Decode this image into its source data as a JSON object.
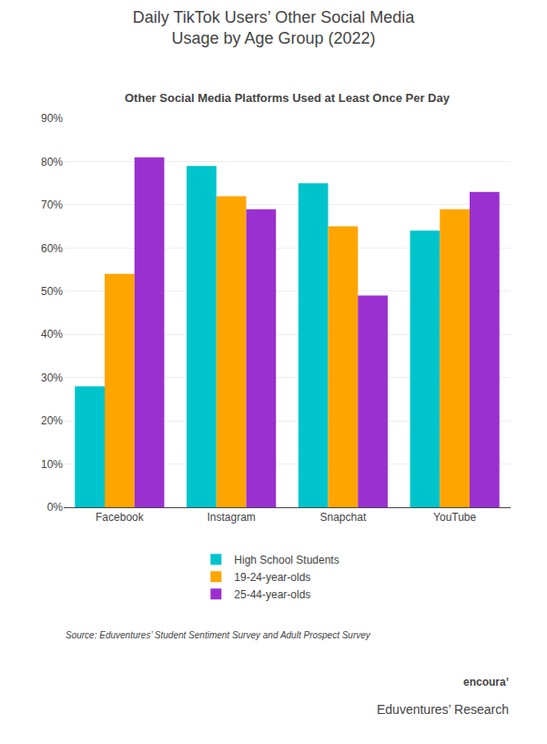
{
  "chart_data": {
    "type": "bar",
    "title": "Daily TikTok Users’ Other Social Media\nUsage by Age Group (2022)",
    "subtitle": "Other Social Media Platforms Used at Least Once Per Day",
    "categories": [
      "Facebook",
      "Instagram",
      "Snapchat",
      "YouTube"
    ],
    "series": [
      {
        "name": "High School Students",
        "color": "#00C4CC",
        "values": [
          0.28,
          0.79,
          0.75,
          0.64
        ]
      },
      {
        "name": "19-24-year-olds",
        "color": "#FFA500",
        "values": [
          0.54,
          0.72,
          0.65,
          0.69
        ]
      },
      {
        "name": "25-44-year-olds",
        "color": "#9B30D0",
        "values": [
          0.81,
          0.69,
          0.49,
          0.73
        ]
      }
    ],
    "ylim": [
      0,
      0.9
    ],
    "yticks": [
      {
        "value": 0.0,
        "label": "0%"
      },
      {
        "value": 0.1,
        "label": "10%"
      },
      {
        "value": 0.2,
        "label": "20%"
      },
      {
        "value": 0.3,
        "label": "30%"
      },
      {
        "value": 0.4,
        "label": "40%"
      },
      {
        "value": 0.5,
        "label": "50%"
      },
      {
        "value": 0.6,
        "label": "60%"
      },
      {
        "value": 0.7,
        "label": "70%"
      },
      {
        "value": 0.8,
        "label": "80%"
      },
      {
        "value": 0.9,
        "label": "90%"
      }
    ],
    "grid": true,
    "legend": "bottom",
    "annotations": [
      "Source: Eduventures’ Student Sentiment Survey and Adult Prospect Survey",
      "encouraʼ",
      "Eduventures’ Research"
    ]
  }
}
